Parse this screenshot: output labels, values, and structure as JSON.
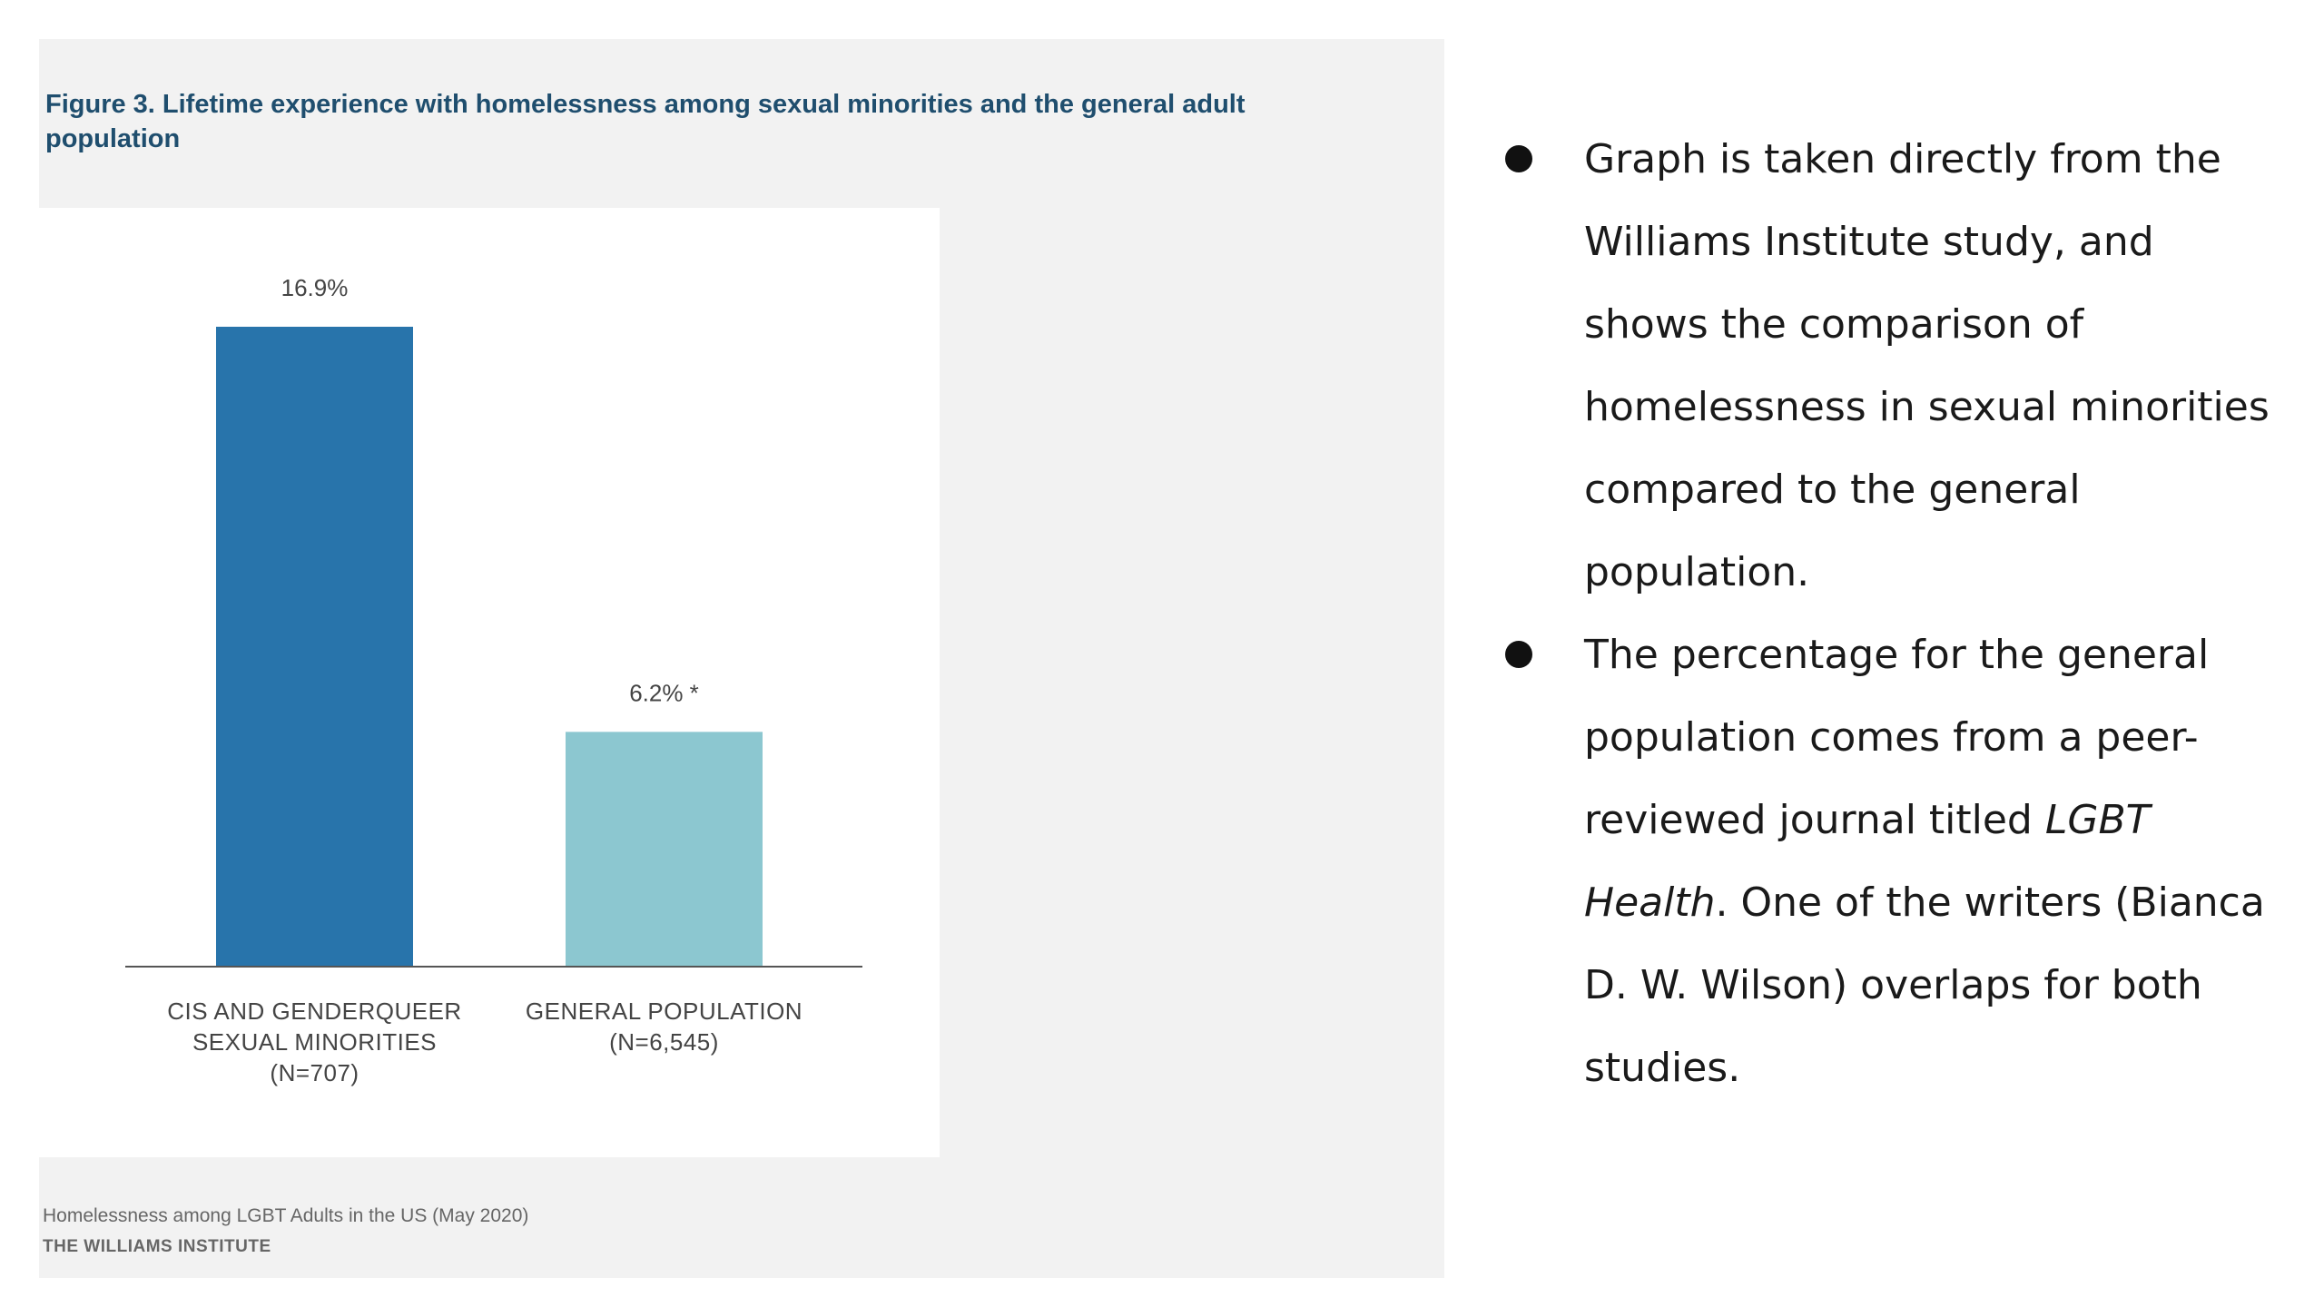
{
  "chart_data": {
    "type": "bar",
    "title": "Figure 3. Lifetime experience with homelessness among sexual minorities and the general adult population",
    "categories": [
      [
        "CIS AND GENDERQUEER",
        "SEXUAL MINORITIES",
        "(N=707)"
      ],
      [
        "GENERAL POPULATION",
        "(N=6,545)"
      ]
    ],
    "values": [
      16.9,
      6.2
    ],
    "value_labels": [
      "16.9%",
      "6.2% *"
    ],
    "colors": [
      "#2874ab",
      "#8cc7d0"
    ],
    "ylim": [
      0,
      16.9
    ],
    "grid": false,
    "xlabel": "",
    "ylabel": ""
  },
  "source": {
    "line": "Homelessness among LGBT Adults in the US (May 2020)",
    "org": "THE WILLIAMS INSTITUTE"
  },
  "notes": [
    {
      "parts": [
        {
          "text": "Graph is taken directly from the Williams Institute study, and shows the comparison of homelessness in sexual minorities compared to the general population.",
          "italic": false
        }
      ]
    },
    {
      "parts": [
        {
          "text": "The percentage for the general population comes from a peer-reviewed journal titled ",
          "italic": false
        },
        {
          "text": "LGBT Health",
          "italic": true
        },
        {
          "text": ". One of the writers (Bianca D. W. Wilson) overlaps for both studies.",
          "italic": false
        }
      ]
    }
  ]
}
